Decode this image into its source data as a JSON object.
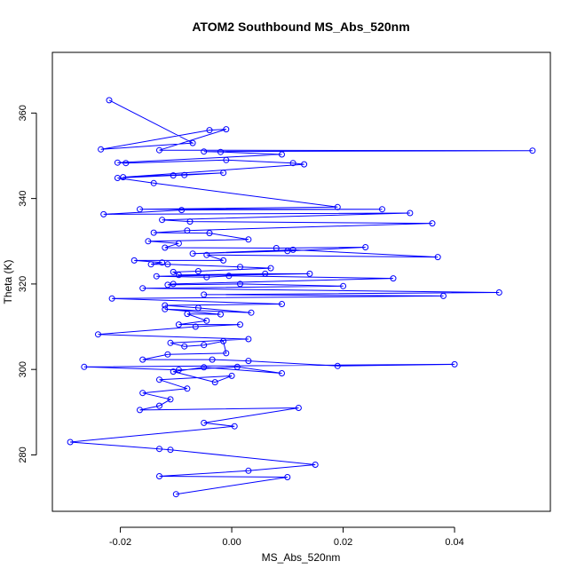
{
  "chart_data": {
    "type": "scatter",
    "title": "ATOM2 Southbound MS_Abs_520nm",
    "xlabel": "MS_Abs_520nm",
    "ylabel": "Theta (K)",
    "xlim": [
      -0.0322,
      0.0572
    ],
    "ylim": [
      266.8,
      374.2
    ],
    "xticks": [
      -0.02,
      0.0,
      0.02,
      0.04
    ],
    "xtick_labels": [
      "-0.02",
      "0.00",
      "0.02",
      "0.04"
    ],
    "yticks": [
      280,
      300,
      320,
      340,
      360
    ],
    "yticks_labels": [
      "280",
      "300",
      "320",
      "340",
      "360"
    ],
    "grid": false,
    "connect_points": true,
    "color": "#0000ff",
    "series": [
      {
        "points": [
          [
            -0.022,
            363.0
          ],
          [
            -0.007,
            353.0
          ],
          [
            -0.0235,
            351.5
          ],
          [
            -0.004,
            356.0
          ],
          [
            -0.001,
            356.2
          ],
          [
            -0.013,
            351.3
          ],
          [
            0.054,
            351.2
          ],
          [
            -0.005,
            351.0
          ],
          [
            -0.002,
            350.9
          ],
          [
            0.009,
            350.3
          ],
          [
            -0.0205,
            348.4
          ],
          [
            -0.019,
            348.3
          ],
          [
            -0.001,
            349.0
          ],
          [
            0.011,
            348.3
          ],
          [
            0.013,
            348.0
          ],
          [
            -0.0195,
            345.0
          ],
          [
            -0.0015,
            346.0
          ],
          [
            -0.0085,
            345.5
          ],
          [
            -0.0105,
            345.4
          ],
          [
            -0.0205,
            344.8
          ],
          [
            -0.014,
            343.6
          ],
          [
            0.019,
            338.0
          ],
          [
            -0.0165,
            337.5
          ],
          [
            0.027,
            337.5
          ],
          [
            -0.009,
            337.3
          ],
          [
            -0.023,
            336.3
          ],
          [
            0.032,
            336.6
          ],
          [
            -0.0125,
            335.0
          ],
          [
            -0.0075,
            334.6
          ],
          [
            0.036,
            334.2
          ],
          [
            -0.008,
            332.5
          ],
          [
            -0.014,
            332.0
          ],
          [
            -0.004,
            331.9
          ],
          [
            0.003,
            330.4
          ],
          [
            -0.015,
            330.0
          ],
          [
            -0.0095,
            329.5
          ],
          [
            -0.012,
            328.5
          ],
          [
            0.008,
            328.4
          ],
          [
            0.024,
            328.6
          ],
          [
            0.01,
            327.7
          ],
          [
            -0.007,
            327.1
          ],
          [
            0.011,
            328.0
          ],
          [
            0.037,
            326.3
          ],
          [
            -0.0045,
            326.8
          ],
          [
            -0.0015,
            325.5
          ],
          [
            -0.0175,
            325.5
          ],
          [
            -0.0125,
            325.0
          ],
          [
            -0.0145,
            324.6
          ],
          [
            -0.0115,
            324.6
          ],
          [
            0.0015,
            324.0
          ],
          [
            0.007,
            323.7
          ],
          [
            -0.006,
            323.0
          ],
          [
            -0.0105,
            322.8
          ],
          [
            -0.0095,
            322.1
          ],
          [
            0.006,
            322.4
          ],
          [
            0.014,
            322.4
          ],
          [
            -0.0135,
            321.8
          ],
          [
            -0.0045,
            321.6
          ],
          [
            -0.0005,
            321.9
          ],
          [
            0.029,
            321.3
          ],
          [
            -0.0105,
            320.0
          ],
          [
            -0.0115,
            319.8
          ],
          [
            0.0015,
            320.0
          ],
          [
            0.02,
            319.5
          ],
          [
            -0.016,
            319.0
          ],
          [
            0.048,
            318.0
          ],
          [
            -0.005,
            317.5
          ],
          [
            0.038,
            317.2
          ],
          [
            -0.0215,
            316.6
          ],
          [
            0.009,
            315.3
          ],
          [
            -0.012,
            315.0
          ],
          [
            -0.006,
            314.4
          ],
          [
            0.0035,
            313.3
          ],
          [
            -0.012,
            314.1
          ],
          [
            -0.002,
            312.9
          ],
          [
            -0.008,
            313.0
          ],
          [
            -0.0045,
            311.4
          ],
          [
            -0.0095,
            310.5
          ],
          [
            0.0015,
            310.5
          ],
          [
            -0.0065,
            310.0
          ],
          [
            -0.024,
            308.2
          ],
          [
            0.003,
            307.1
          ],
          [
            -0.011,
            306.2
          ],
          [
            -0.0085,
            305.4
          ],
          [
            -0.005,
            305.7
          ],
          [
            -0.0015,
            306.6
          ],
          [
            -0.001,
            303.8
          ],
          [
            -0.0115,
            303.5
          ],
          [
            -0.016,
            302.3
          ],
          [
            -0.0035,
            302.3
          ],
          [
            0.003,
            302.0
          ],
          [
            0.019,
            300.8
          ],
          [
            0.04,
            301.2
          ],
          [
            -0.0265,
            300.6
          ],
          [
            -0.0095,
            299.9
          ],
          [
            0.001,
            300.6
          ],
          [
            0.009,
            299.1
          ],
          [
            -0.005,
            300.5
          ],
          [
            -0.0105,
            299.5
          ],
          [
            -0.003,
            297.0
          ],
          [
            0.0,
            298.5
          ],
          [
            -0.013,
            297.6
          ],
          [
            -0.008,
            295.5
          ],
          [
            -0.016,
            294.5
          ],
          [
            -0.011,
            293.0
          ],
          [
            -0.013,
            291.5
          ],
          [
            -0.0165,
            290.5
          ],
          [
            0.012,
            291.0
          ],
          [
            -0.005,
            287.5
          ],
          [
            0.0005,
            286.7
          ],
          [
            -0.029,
            283.0
          ],
          [
            -0.013,
            281.4
          ],
          [
            -0.011,
            281.2
          ],
          [
            0.015,
            277.7
          ],
          [
            0.003,
            276.3
          ],
          [
            -0.013,
            275.0
          ],
          [
            0.01,
            274.8
          ],
          [
            -0.01,
            270.8
          ]
        ]
      }
    ]
  }
}
